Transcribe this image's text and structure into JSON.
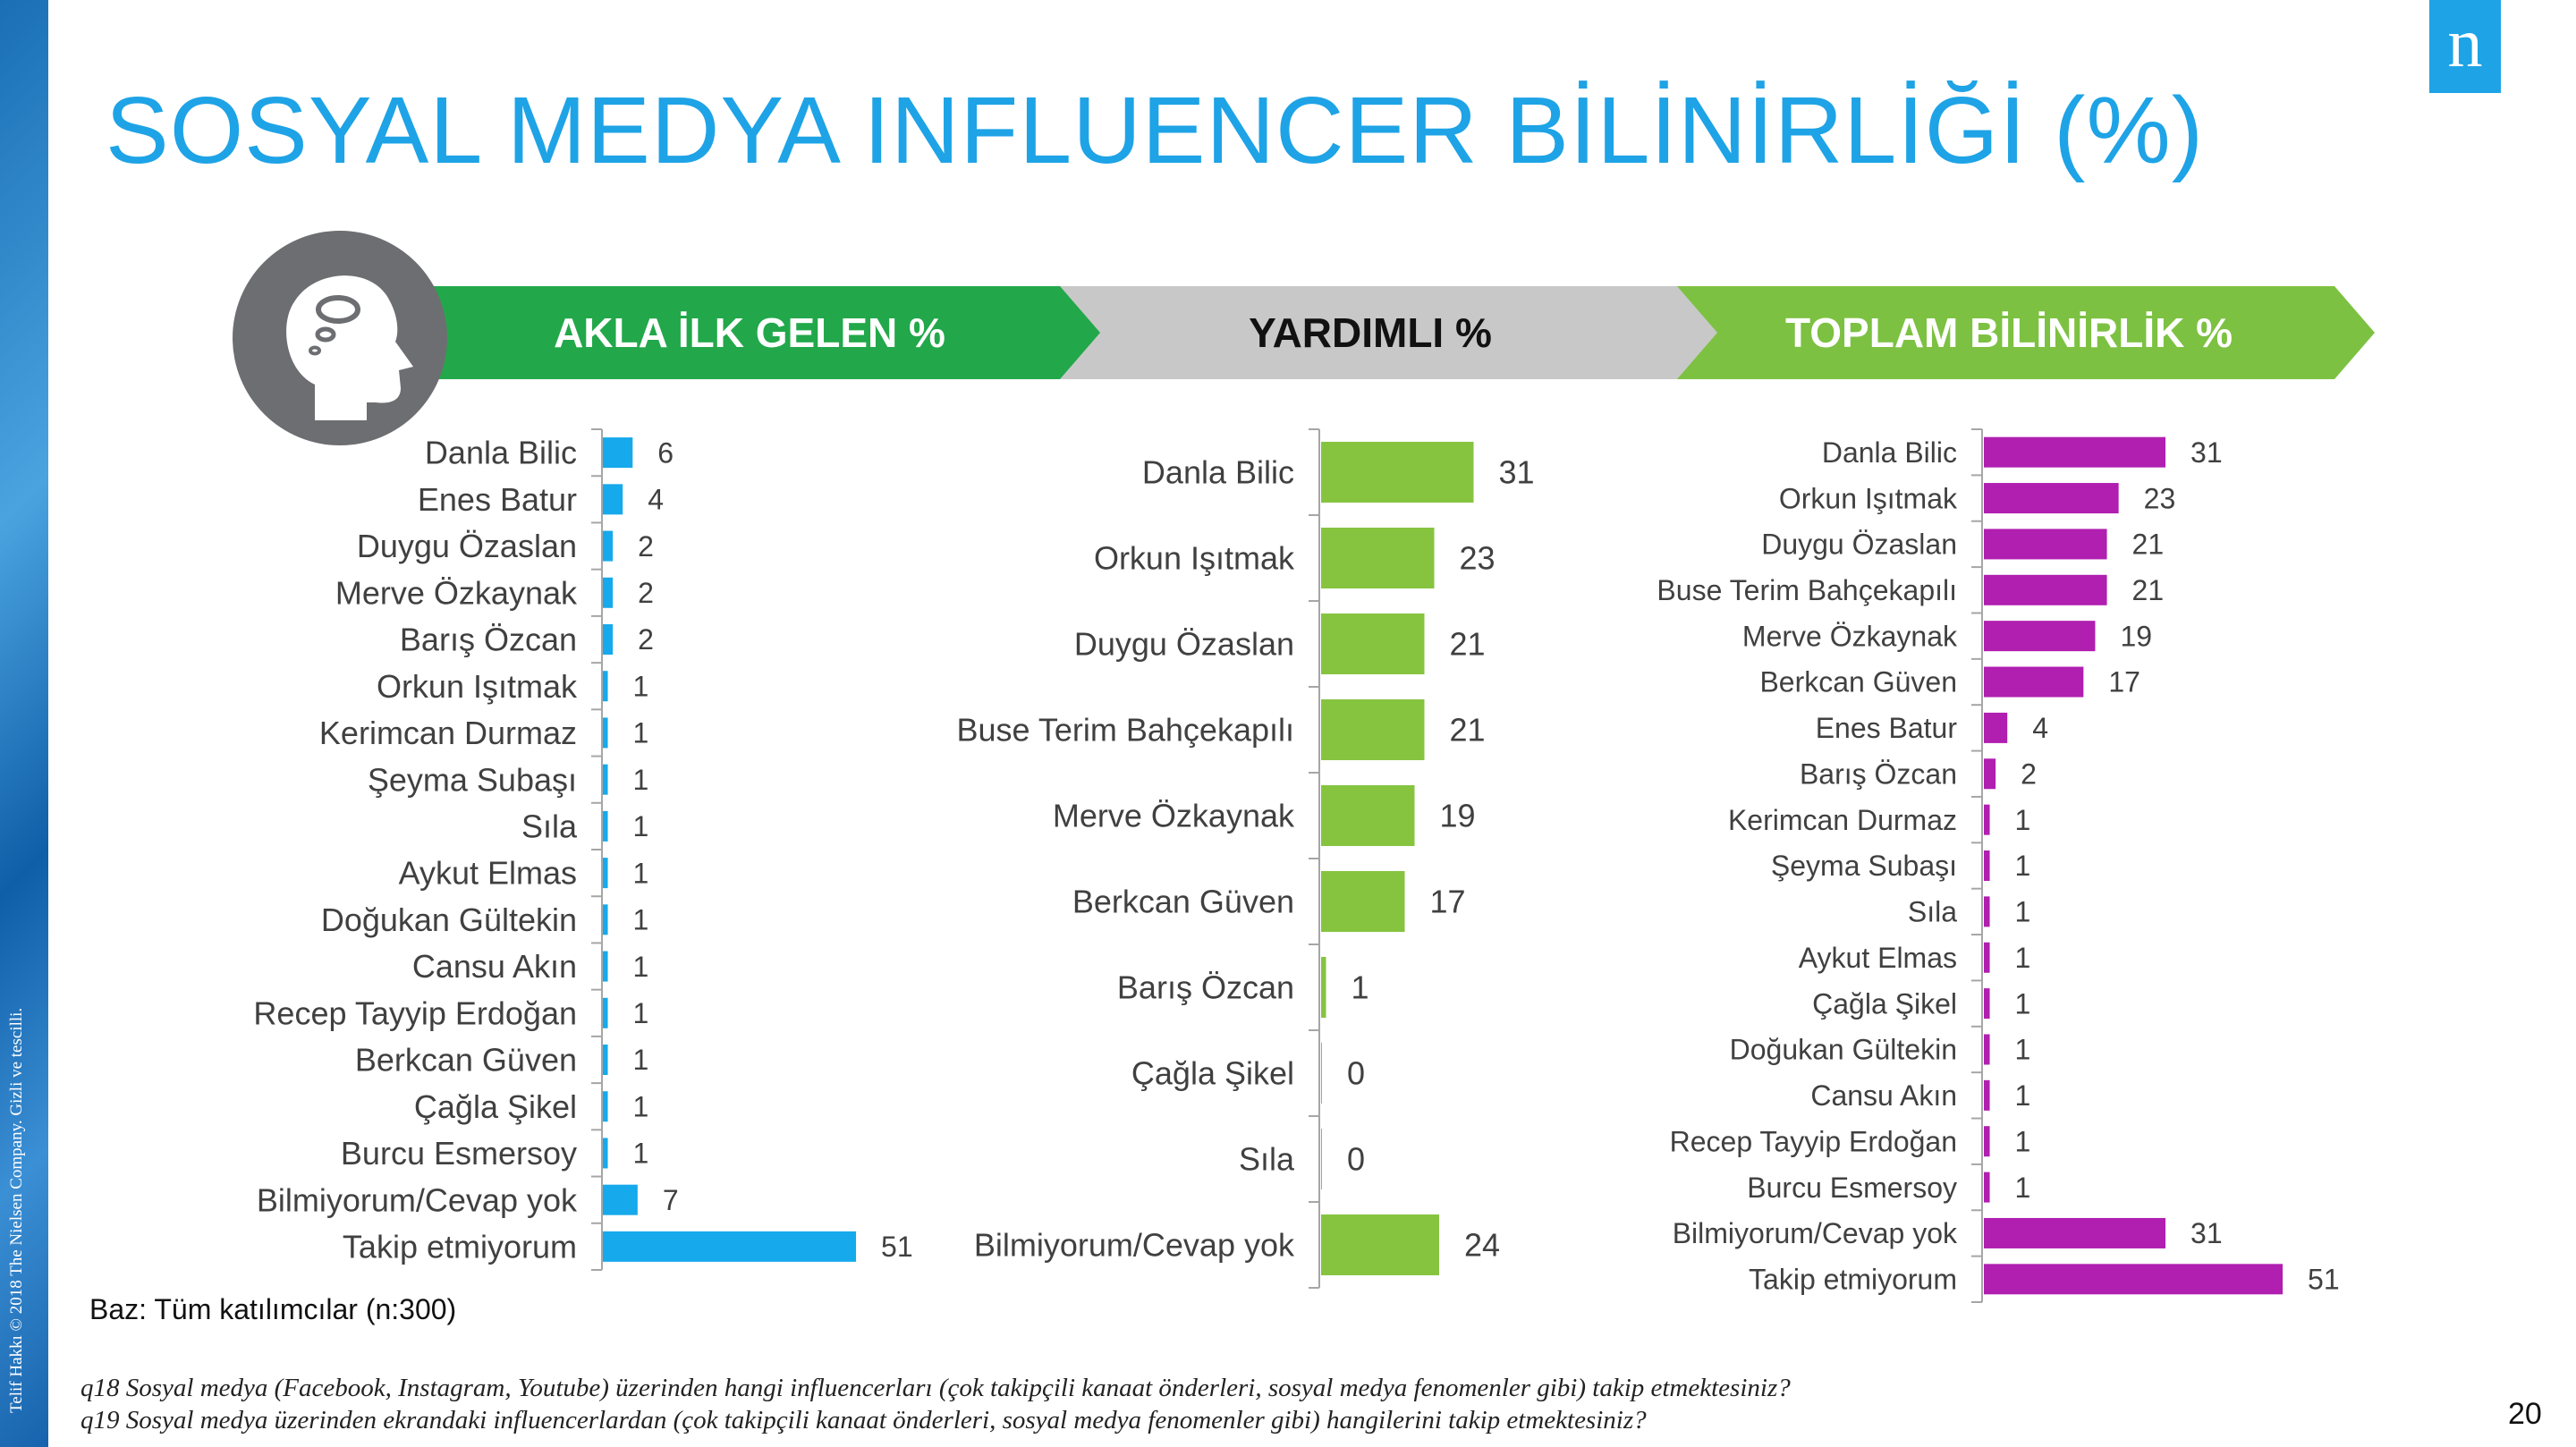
{
  "title": "SOSYAL MEDYA INFLUENCER BİLİNİRLİĞİ (%)",
  "logo_text": "n",
  "copyright": "Telif Hakkı © 2018 The Nielsen Company. Gizli ve tescilli.",
  "base_note": "Baz: Tüm katılımcılar (n:300)",
  "footnotes": [
    "q18 Sosyal medya (Facebook, Instagram, Youtube) üzerinden hangi influencerları (çok takipçili kanaat önderleri, sosyal medya fenomenler gibi) takip etmektesiniz?",
    "q19 Sosyal medya üzerinden ekrandaki influencerlardan (çok takipçili kanaat önderleri, sosyal medya fenomenler gibi) hangilerini takip etmektesiniz?"
  ],
  "page_number": "20",
  "icons": {
    "header_icon": "head-thinking-icon"
  },
  "header_labels": [
    "AKLA İLK GELEN %",
    "YARDIMLI %",
    "TOPLAM BİLİNİRLİK %"
  ],
  "colors": {
    "title": "#1EA3E6",
    "green_dark": "#22A84A",
    "gray": "#C8C8C8",
    "green_light": "#7DC142",
    "bar_blue": "#16A9EC",
    "bar_green": "#86C440",
    "bar_purple": "#B01FB0",
    "icon_circle": "#6D6E71"
  },
  "chart_data": [
    {
      "type": "bar",
      "orientation": "horizontal",
      "title": "AKLA İLK GELEN %",
      "categories": [
        "Danla Bilic",
        "Enes Batur",
        "Duygu Özaslan",
        "Merve Özkaynak",
        "Barış Özcan",
        "Orkun Işıtmak",
        "Kerimcan Durmaz",
        "Şeyma Subaşı",
        "Sıla",
        "Aykut Elmas",
        "Doğukan Gültekin",
        "Cansu Akın",
        "Recep Tayyip Erdoğan",
        "Berkcan Güven",
        "Çağla Şikel",
        "Burcu Esmersoy",
        "Bilmiyorum/Cevap yok",
        "Takip etmiyorum"
      ],
      "values": [
        6,
        4,
        2,
        2,
        2,
        1,
        1,
        1,
        1,
        1,
        1,
        1,
        1,
        1,
        1,
        1,
        7,
        51
      ],
      "color": "#16A9EC",
      "xlim": [
        0,
        51
      ]
    },
    {
      "type": "bar",
      "orientation": "horizontal",
      "title": "YARDIMLI %",
      "categories": [
        "Danla Bilic",
        "Orkun Işıtmak",
        "Duygu Özaslan",
        "Buse Terim Bahçekapılı",
        "Merve Özkaynak",
        "Berkcan Güven",
        "Barış Özcan",
        "Çağla Şikel",
        "Sıla",
        "Bilmiyorum/Cevap yok"
      ],
      "values": [
        31,
        23,
        21,
        21,
        19,
        17,
        1,
        0,
        0,
        24
      ],
      "color": "#86C440",
      "xlim": [
        0,
        31
      ]
    },
    {
      "type": "bar",
      "orientation": "horizontal",
      "title": "TOPLAM BİLİNİRLİK %",
      "categories": [
        "Danla Bilic",
        "Orkun Işıtmak",
        "Duygu Özaslan",
        "Buse Terim Bahçekapılı",
        "Merve Özkaynak",
        "Berkcan Güven",
        "Enes Batur",
        "Barış Özcan",
        "Kerimcan Durmaz",
        "Şeyma Subaşı",
        "Sıla",
        "Aykut Elmas",
        "Çağla Şikel",
        "Doğukan Gültekin",
        "Cansu Akın",
        "Recep Tayyip Erdoğan",
        "Burcu Esmersoy",
        "Bilmiyorum/Cevap yok",
        "Takip etmiyorum"
      ],
      "values": [
        31,
        23,
        21,
        21,
        19,
        17,
        4,
        2,
        1,
        1,
        1,
        1,
        1,
        1,
        1,
        1,
        1,
        31,
        51
      ],
      "color": "#B01FB0",
      "xlim": [
        0,
        51
      ]
    }
  ]
}
